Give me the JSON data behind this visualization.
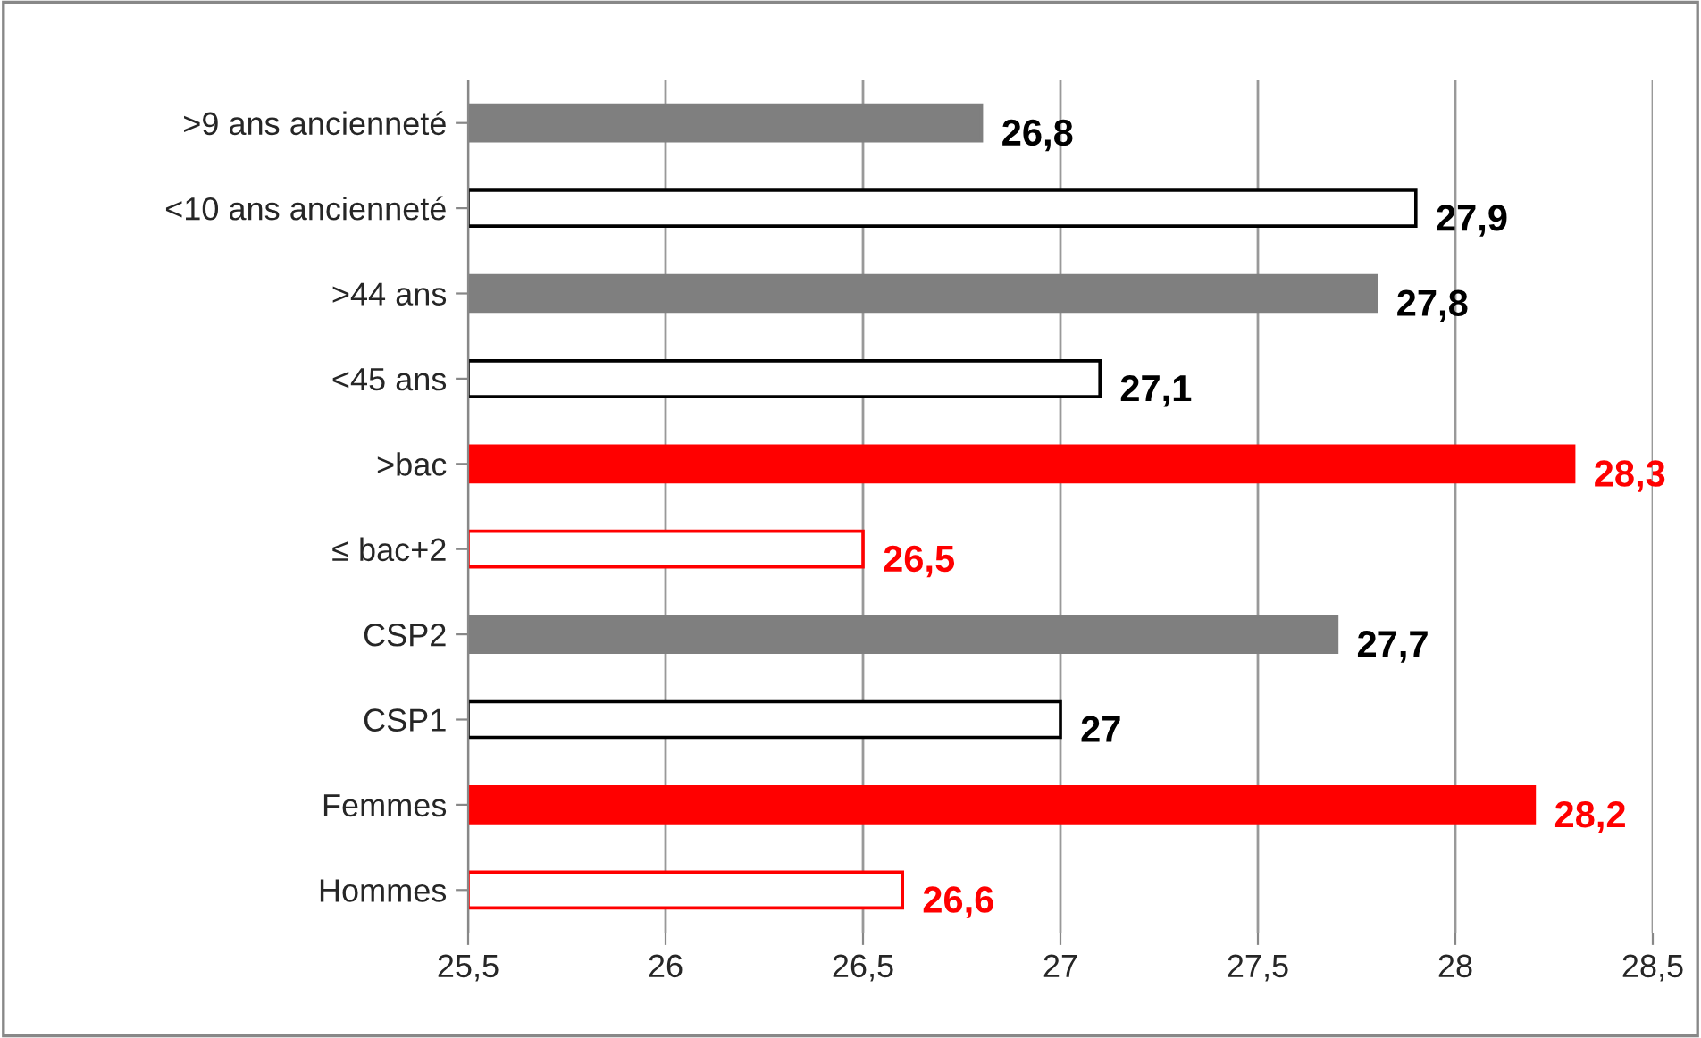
{
  "chart_data": {
    "type": "bar",
    "orientation": "horizontal",
    "categories": [
      ">9 ans ancienneté",
      "<10 ans ancienneté",
      ">44 ans",
      "<45 ans",
      ">bac",
      "≤ bac+2",
      "CSP2",
      "CSP1",
      "Femmes",
      "Hommes"
    ],
    "series": [
      {
        "colors": [
          "#7f7f7f",
          null,
          "#7f7f7f",
          null,
          "#ff0000",
          null,
          "#7f7f7f",
          null,
          "#ff0000",
          null
        ],
        "values": [
          26.8,
          null,
          27.8,
          null,
          28.3,
          null,
          27.7,
          null,
          28.2,
          null
        ],
        "value_labels": [
          "26,8",
          null,
          "27,8",
          null,
          "28,3",
          null,
          "27,7",
          null,
          "28,2",
          null
        ]
      },
      {
        "colors": [
          null,
          "#000000",
          null,
          "#000000",
          null,
          "#ff0000",
          null,
          "#000000",
          null,
          "#ff0000"
        ],
        "values": [
          null,
          27.9,
          null,
          27.1,
          null,
          26.5,
          null,
          27,
          null,
          26.6
        ],
        "value_labels": [
          null,
          "27,9",
          null,
          "27,1",
          null,
          "26,5",
          null,
          "27",
          null,
          "26,6"
        ]
      }
    ],
    "xlim": [
      25.5,
      28.5
    ],
    "xticks": [
      {
        "value": 25.5,
        "label": "25,5"
      },
      26,
      {
        "value": 26.5,
        "label": "26,5"
      },
      27,
      {
        "value": 27.5,
        "label": "27,5"
      },
      28,
      {
        "value": 28.5,
        "label": "28,5"
      }
    ],
    "grid": "x"
  }
}
